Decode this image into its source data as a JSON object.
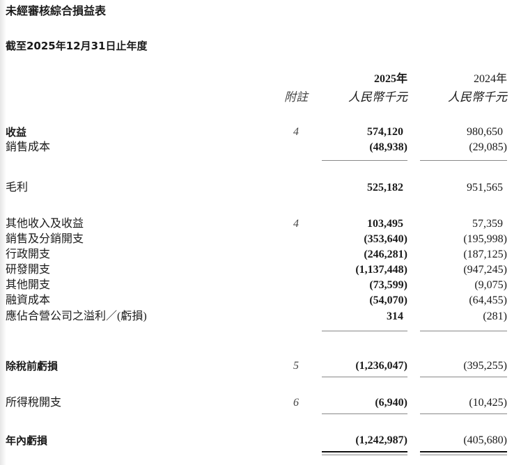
{
  "title": "未經審核綜合損益表",
  "subtitle": "截至2025年12月31日止年度",
  "header": {
    "note": "附註",
    "year_2025": "2025年",
    "year_2024": "2024年",
    "unit_2025": "人民幣千元",
    "unit_2024": "人民幣千元"
  },
  "rows": [
    {
      "label": "收益",
      "note": "4",
      "v2025": "574,120",
      "v2024": "980,650"
    },
    {
      "label": "銷售成本",
      "note": "",
      "v2025": "(48,938)",
      "v2024": "(29,085)"
    },
    {
      "label": "毛利",
      "note": "",
      "v2025": "525,182",
      "v2024": "951,565"
    },
    {
      "label": "其他收入及收益",
      "note": "4",
      "v2025": "103,495",
      "v2024": "57,359"
    },
    {
      "label": "銷售及分銷開支",
      "note": "",
      "v2025": "(353,640)",
      "v2024": "(195,998)"
    },
    {
      "label": "行政開支",
      "note": "",
      "v2025": "(246,281)",
      "v2024": "(187,125)"
    },
    {
      "label": "研發開支",
      "note": "",
      "v2025": "(1,137,448)",
      "v2024": "(947,245)"
    },
    {
      "label": "其他開支",
      "note": "",
      "v2025": "(73,599)",
      "v2024": "(9,075)"
    },
    {
      "label": "融資成本",
      "note": "",
      "v2025": "(54,070)",
      "v2024": "(64,455)"
    },
    {
      "label": "應佔合營公司之溢利／(虧損)",
      "note": "",
      "v2025": "314",
      "v2024": "(281)"
    },
    {
      "label": "除稅前虧損",
      "note": "5",
      "v2025": "(1,236,047)",
      "v2024": "(395,255)"
    },
    {
      "label": "所得稅開支",
      "note": "6",
      "v2025": "(6,940)",
      "v2024": "(10,425)"
    },
    {
      "label": "年內虧損",
      "note": "",
      "v2025": "(1,242,987)",
      "v2024": "(405,680)"
    }
  ]
}
